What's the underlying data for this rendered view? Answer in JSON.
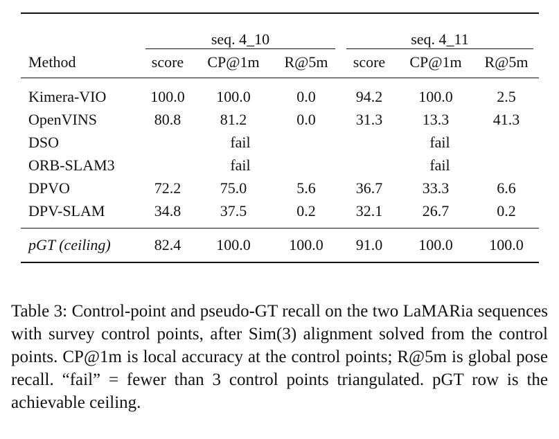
{
  "table": {
    "groups": [
      {
        "label": "seq. 4_10"
      },
      {
        "label": "seq. 4_11"
      }
    ],
    "columns": {
      "method": "Method",
      "metrics": [
        "score",
        "CP@1m",
        "R@5m",
        "score",
        "CP@1m",
        "R@5m"
      ]
    },
    "rows": [
      {
        "method": "Kimera-VIO",
        "cells": [
          "100.0",
          "100.0",
          "0.0",
          "94.2",
          "100.0",
          "2.5"
        ]
      },
      {
        "method": "OpenVINS",
        "cells": [
          "80.8",
          "81.2",
          "0.0",
          "31.3",
          "13.3",
          "41.3"
        ]
      },
      {
        "method": "DSO",
        "fail_1": "fail",
        "fail_2": "fail"
      },
      {
        "method": "ORB-SLAM3",
        "fail_1": "fail",
        "fail_2": "fail"
      },
      {
        "method": "DPVO",
        "cells": [
          "72.2",
          "75.0",
          "5.6",
          "36.7",
          "33.3",
          "6.6"
        ]
      },
      {
        "method": "DPV-SLAM",
        "cells": [
          "34.8",
          "37.5",
          "0.2",
          "32.1",
          "26.7",
          "0.2"
        ]
      }
    ],
    "ceiling": {
      "method": "pGT (ceiling)",
      "cells": [
        "82.4",
        "100.0",
        "100.0",
        "91.0",
        "100.0",
        "100.0"
      ]
    }
  },
  "caption": {
    "text": "Table 3:  Control-point and pseudo-GT recall on the two LaMARia sequences with survey control points, after Sim(3) alignment solved from the control points. CP@1m is local ac­curacy at the control points; R@5m is global pose recall. “fail” = fewer than 3 control points triangulated. pGT row is the achiev­able ceiling."
  }
}
